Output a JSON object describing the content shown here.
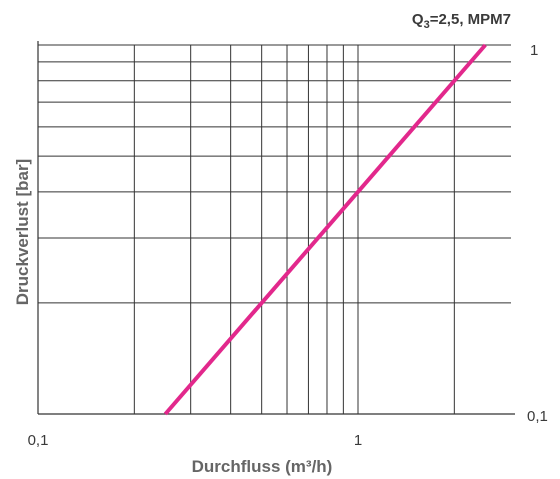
{
  "chart_data": {
    "type": "line",
    "title_prefix": "Q",
    "title_subscript": "3",
    "title_suffix": "=2,5, MPM7",
    "xlabel": "Durchfluss (m³/h)",
    "ylabel": "Druckverlust [bar]",
    "x_scale": "log",
    "y_scale": "log",
    "xlim": [
      0.1,
      3.5
    ],
    "ylim": [
      0.1,
      1
    ],
    "x_tick_labels": [
      "0,1",
      "1"
    ],
    "y_tick_labels": [
      "1",
      "0,1"
    ],
    "grid": true,
    "series": [
      {
        "color": "#e2288c",
        "points": [
          {
            "x": 0.25,
            "y": 0.1
          },
          {
            "x": 2.5,
            "y": 1.0
          }
        ]
      }
    ]
  }
}
